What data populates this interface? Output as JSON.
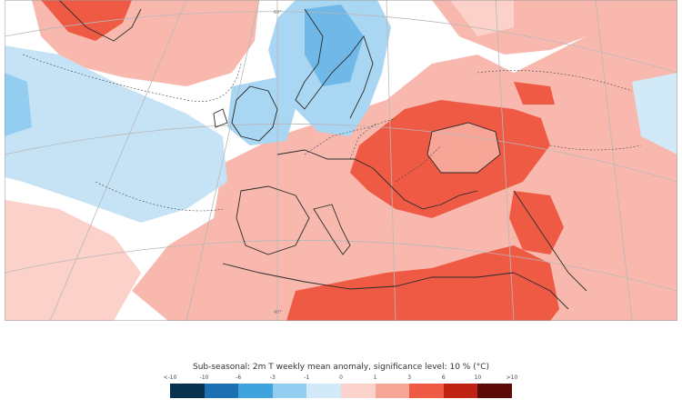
{
  "caption": "Sub-seasonal: 2m T weekly mean anomaly, significance level: 10 % (°C)",
  "legend": {
    "ticks": [
      "<-10",
      "-10",
      "-6",
      "-3",
      "-1",
      "0",
      "1",
      "3",
      "6",
      "10",
      ">10"
    ],
    "colors": [
      "#08304f",
      "#1c6fb0",
      "#3fa4dd",
      "#93cdf0",
      "#d2e9f8",
      "#fbd3cc",
      "#f6a597",
      "#ef5a45",
      "#c02314",
      "#5c0a05"
    ]
  },
  "map": {
    "title": "2m temperature weekly mean anomaly",
    "region": "Europe / North Atlantic / Mediterranean",
    "grid_labels": [
      "60°",
      "40°"
    ]
  }
}
